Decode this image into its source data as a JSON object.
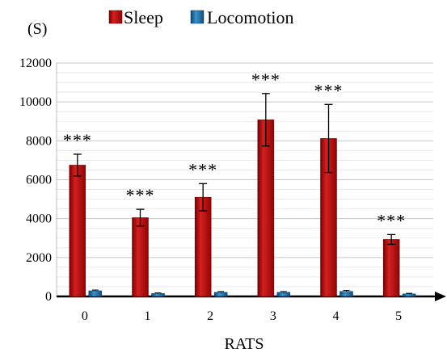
{
  "chart_data": {
    "type": "bar",
    "title": "",
    "xlabel": "RATS",
    "ylabel": "",
    "y_unit_label": "(S)",
    "categories": [
      "0",
      "1",
      "2",
      "3",
      "4",
      "5"
    ],
    "series": [
      {
        "name": "Sleep",
        "color": "#a80f0f",
        "values": [
          6750,
          4050,
          5100,
          9080,
          8120,
          2930
        ],
        "error": [
          560,
          430,
          700,
          1350,
          1750,
          250
        ],
        "significance": [
          "***",
          "***",
          "***",
          "***",
          "***",
          "***"
        ]
      },
      {
        "name": "Locomotion",
        "color": "#1b6aa0",
        "values": [
          290,
          150,
          210,
          210,
          260,
          130
        ],
        "error": [
          40,
          30,
          40,
          40,
          50,
          30
        ]
      }
    ],
    "ylim": [
      0,
      12000
    ],
    "y_ticks": [
      "0",
      "2000",
      "4000",
      "6000",
      "8000",
      "10000",
      "12000"
    ],
    "grid": true,
    "legend_position": "top"
  }
}
